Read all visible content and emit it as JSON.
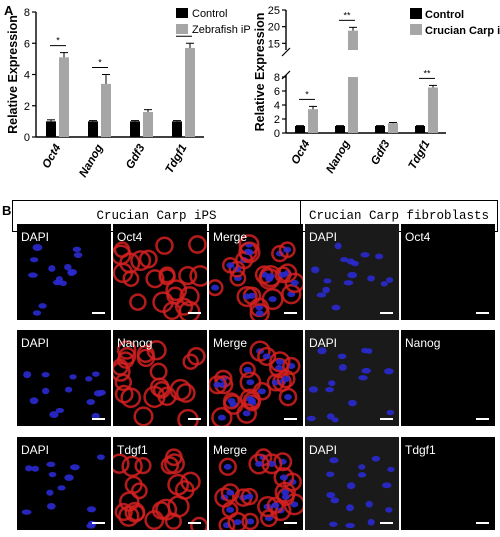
{
  "figure": {
    "panel_a_letter": "A",
    "panel_b_letter": "B",
    "header_left": "Crucian Carp iPS",
    "header_right": "Crucian Carp fibroblasts",
    "rows": [
      {
        "cells": [
          "DAPI",
          "Oct4",
          "Merge",
          "DAPI",
          "Oct4"
        ]
      },
      {
        "cells": [
          "DAPI",
          "Nanog",
          "Merge",
          "DAPI",
          "Nanog"
        ]
      },
      {
        "cells": [
          "DAPI",
          "Tdgf1",
          "Merge",
          "DAPI",
          "Tdgf1"
        ]
      }
    ],
    "colors": {
      "dapi": "#2a2ad0",
      "stain_red": "#d42020",
      "fibro_bg": "#1a1a1a",
      "control_bar": "#000000",
      "treated_bar": "#a6a6a6"
    }
  },
  "chart_data": [
    {
      "type": "bar",
      "ylabel": "Relative Expression",
      "ylim": [
        0,
        8
      ],
      "yticks": [
        "0",
        "2",
        "4",
        "6",
        "8"
      ],
      "categories": [
        "Oct4",
        "Nanog",
        "Gdf3",
        "Tdgf1"
      ],
      "series": [
        {
          "name": "Control",
          "values": [
            1.0,
            1.0,
            1.0,
            1.0
          ],
          "errors": [
            0.1,
            0.05,
            0.05,
            0.05
          ]
        },
        {
          "name": "Zebrafish iPS",
          "values": [
            5.1,
            3.4,
            1.6,
            5.7
          ],
          "errors": [
            0.3,
            0.6,
            0.15,
            0.3
          ]
        }
      ],
      "significance": [
        "*",
        "*",
        "",
        "*"
      ],
      "legend": "top-right"
    },
    {
      "type": "bar",
      "ylabel": "Relative Expression",
      "ylim": [
        0,
        25
      ],
      "broken_axis": true,
      "yticks": [
        "0",
        "2",
        "4",
        "6",
        "8",
        "15",
        "20",
        "25"
      ],
      "categories": [
        "Oct4",
        "Nanog",
        "Gdf3",
        "Tdgf1"
      ],
      "series": [
        {
          "name": "Control",
          "values": [
            1.0,
            1.0,
            1.0,
            1.0
          ],
          "errors": [
            0.05,
            0.05,
            0.05,
            0.05
          ]
        },
        {
          "name": "Crucian Carp iPS",
          "values": [
            3.4,
            18.8,
            1.4,
            6.5
          ],
          "errors": [
            0.4,
            1.0,
            0.1,
            0.3
          ]
        }
      ],
      "significance": [
        "*",
        "**",
        "",
        "**"
      ],
      "legend": "top-right"
    }
  ]
}
